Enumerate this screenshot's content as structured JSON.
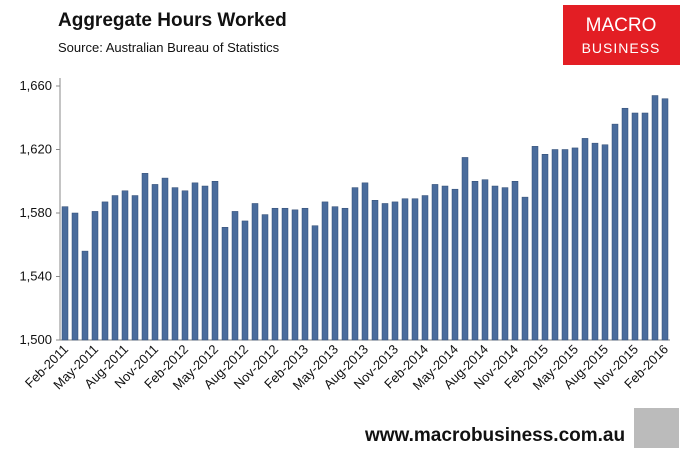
{
  "chart_data": {
    "type": "bar",
    "title": "Aggregate Hours Worked",
    "subtitle": "Source: Australian Bureau of Statistics",
    "logo": [
      "MACRO",
      "BUSINESS"
    ],
    "website": "www.macrobusiness.com.au",
    "color": "#4a6c9c",
    "categories": [
      "Feb-2011",
      null,
      null,
      "May-2011",
      null,
      null,
      "Aug-2011",
      null,
      null,
      "Nov-2011",
      null,
      null,
      "Feb-2012",
      null,
      null,
      "May-2012",
      null,
      null,
      "Aug-2012",
      null,
      null,
      "Nov-2012",
      null,
      null,
      "Feb-2013",
      null,
      null,
      "May-2013",
      null,
      null,
      "Aug-2013",
      null,
      null,
      "Nov-2013",
      null,
      null,
      "Feb-2014",
      null,
      null,
      "May-2014",
      null,
      null,
      "Aug-2014",
      null,
      null,
      "Nov-2014",
      null,
      null,
      "Feb-2015",
      null,
      null,
      "May-2015",
      null,
      null,
      "Aug-2015",
      null,
      null,
      "Nov-2015",
      null,
      null,
      "Feb-2016"
    ],
    "values": [
      1584,
      1580,
      1556,
      1581,
      1587,
      1591,
      1594,
      1591,
      1605,
      1598,
      1602,
      1596,
      1594,
      1599,
      1597,
      1600,
      1571,
      1581,
      1575,
      1586,
      1579,
      1583,
      1583,
      1582,
      1583,
      1572,
      1587,
      1584,
      1583,
      1596,
      1599,
      1588,
      1586,
      1587,
      1589,
      1589,
      1591,
      1598,
      1597,
      1595,
      1615,
      1600,
      1601,
      1597,
      1596,
      1600,
      1590,
      1622,
      1617,
      1620,
      1620,
      1621,
      1627,
      1624,
      1623,
      1636,
      1646,
      1643,
      1643,
      1654,
      1652
    ],
    "ylim": [
      1500,
      1660
    ],
    "yticks": [
      {
        "value": 1500,
        "label": "1,500"
      },
      {
        "value": 1540,
        "label": "1,540"
      },
      {
        "value": 1580,
        "label": "1,580"
      },
      {
        "value": 1620,
        "label": "1,620"
      },
      {
        "value": 1660,
        "label": "1,660"
      }
    ],
    "grid": false
  }
}
